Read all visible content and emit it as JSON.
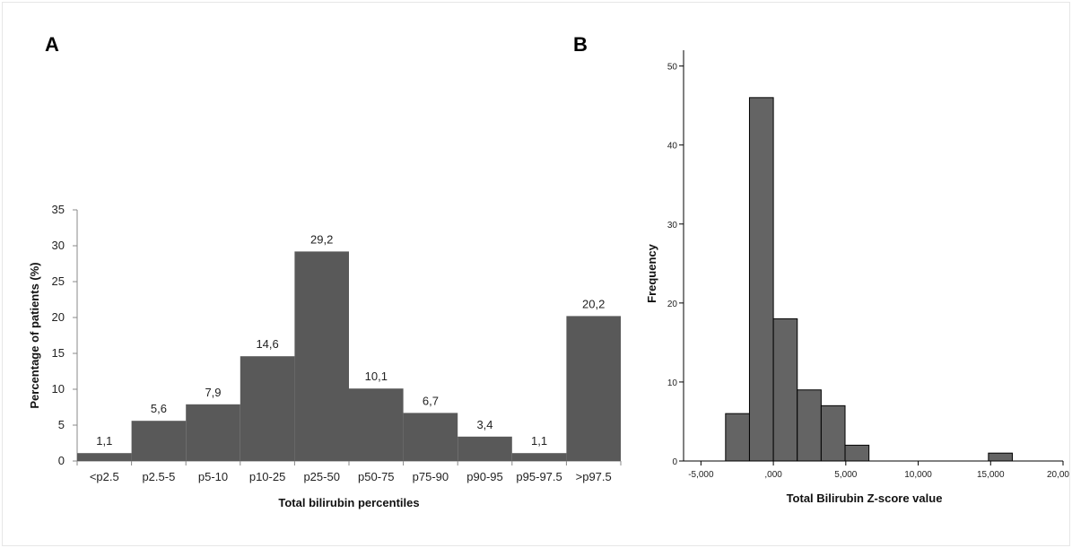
{
  "panels": {
    "a_label": "A",
    "b_label": "B"
  },
  "chart_data": [
    {
      "type": "bar",
      "panel": "A",
      "categories": [
        "<p2.5",
        "p2.5-5",
        "p5-10",
        "p10-25",
        "p25-50",
        "p50-75",
        "p75-90",
        "p90-95",
        "p95-97.5",
        ">p97.5"
      ],
      "values": [
        1.1,
        5.6,
        7.9,
        14.6,
        29.2,
        10.1,
        6.7,
        3.4,
        1.1,
        20.2
      ],
      "data_labels": [
        "1,1",
        "5,6",
        "7,9",
        "14,6",
        "29,2",
        "10,1",
        "6,7",
        "3,4",
        "1,1",
        "20,2"
      ],
      "xlabel": "Total bilirubin percentiles",
      "ylabel": "Percentage of patients (%)",
      "ylim": [
        0,
        35
      ],
      "yticks": [
        0,
        5,
        10,
        15,
        20,
        25,
        30,
        35
      ],
      "bar_color": "#595959",
      "grid": false
    },
    {
      "type": "bar",
      "panel": "B",
      "histogram": true,
      "bin_edges": [
        -3.3,
        -1.65,
        0.0,
        1.65,
        3.3,
        4.95,
        6.6,
        8.25,
        9.9,
        11.55,
        13.2,
        14.85,
        16.5
      ],
      "values": [
        6,
        46,
        18,
        9,
        7,
        2,
        0,
        0,
        0,
        0,
        0,
        1
      ],
      "xlabel": "Total Bilirubin Z-score value",
      "ylabel": "Frequency",
      "xlim": [
        -6.2,
        20.0
      ],
      "ylim": [
        0,
        52
      ],
      "xticks": [
        -5,
        0,
        5,
        10,
        15,
        20
      ],
      "xtick_labels": [
        "-5,000",
        ",000",
        "5,000",
        "10,000",
        "15,000",
        "20,00"
      ],
      "yticks": [
        0,
        10,
        20,
        30,
        40,
        50
      ],
      "bar_color": "#646464",
      "grid": false
    }
  ]
}
